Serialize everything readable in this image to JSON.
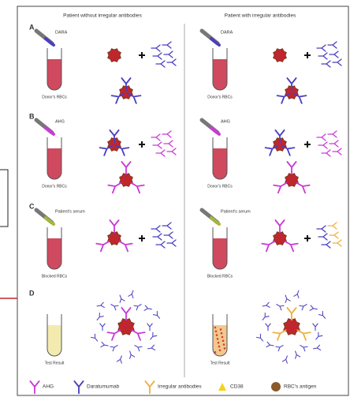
{
  "columns": [
    "Patient without irregular antibodies",
    "Patient with irregular antibodies"
  ],
  "panels": [
    {
      "letter": "A",
      "reagent": "DARA",
      "tube": "Donor's RBCs"
    },
    {
      "letter": "B",
      "reagent": "AHG",
      "tube": "Donor's RBCs"
    },
    {
      "letter": "C",
      "reagent": "Patient's serum",
      "tube": "Blocked RBCs"
    },
    {
      "letter": "D",
      "tube": "Test Result"
    }
  ],
  "legend": [
    "AHG",
    "Daratumumab",
    "Irregular antibodies",
    "CD38",
    "RBC's antigen"
  ]
}
